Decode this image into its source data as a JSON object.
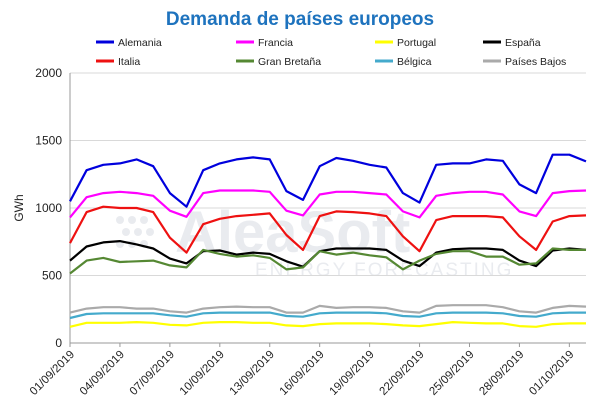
{
  "chart_data": {
    "type": "line",
    "title": "Demanda de países europeos",
    "xlabel": "",
    "ylabel": "GWh",
    "ylim": [
      0,
      2000
    ],
    "yticks": [
      0,
      500,
      1000,
      1500,
      2000
    ],
    "grid": true,
    "legend_position": "top",
    "x": [
      "01/09/2019",
      "02/09/2019",
      "03/09/2019",
      "04/09/2019",
      "05/09/2019",
      "06/09/2019",
      "07/09/2019",
      "08/09/2019",
      "09/09/2019",
      "10/09/2019",
      "11/09/2019",
      "12/09/2019",
      "13/09/2019",
      "14/09/2019",
      "15/09/2019",
      "16/09/2019",
      "17/09/2019",
      "18/09/2019",
      "19/09/2019",
      "20/09/2019",
      "21/09/2019",
      "22/09/2019",
      "23/09/2019",
      "24/09/2019",
      "25/09/2019",
      "26/09/2019",
      "27/09/2019",
      "28/09/2019",
      "29/09/2019",
      "30/09/2019",
      "01/10/2019",
      "02/10/2019"
    ],
    "xtick_labels": [
      "01/09/2019",
      "04/09/2019",
      "07/09/2019",
      "10/09/2019",
      "13/09/2019",
      "16/09/2019",
      "19/09/2019",
      "22/09/2019",
      "25/09/2019",
      "28/09/2019",
      "01/10/2019"
    ],
    "series": [
      {
        "name": "Alemania",
        "color": "#0000dd",
        "values": [
          1050,
          1280,
          1320,
          1330,
          1360,
          1310,
          1110,
          1010,
          1280,
          1330,
          1360,
          1375,
          1360,
          1125,
          1060,
          1310,
          1370,
          1350,
          1320,
          1300,
          1110,
          1040,
          1320,
          1330,
          1330,
          1360,
          1350,
          1175,
          1110,
          1395,
          1395,
          1345
        ]
      },
      {
        "name": "Francia",
        "color": "#ff00ff",
        "values": [
          930,
          1080,
          1110,
          1120,
          1110,
          1090,
          980,
          935,
          1110,
          1130,
          1130,
          1130,
          1120,
          980,
          945,
          1100,
          1120,
          1120,
          1110,
          1100,
          975,
          930,
          1090,
          1110,
          1120,
          1120,
          1100,
          975,
          940,
          1110,
          1125,
          1130
        ]
      },
      {
        "name": "Portugal",
        "color": "#ffff00",
        "values": [
          120,
          150,
          150,
          150,
          155,
          150,
          135,
          130,
          150,
          155,
          155,
          150,
          150,
          130,
          125,
          140,
          145,
          145,
          145,
          140,
          130,
          125,
          140,
          155,
          150,
          145,
          145,
          125,
          120,
          140,
          145,
          145
        ]
      },
      {
        "name": "España",
        "color": "#000000",
        "values": [
          610,
          715,
          745,
          755,
          730,
          700,
          625,
          590,
          680,
          685,
          655,
          670,
          660,
          605,
          565,
          680,
          700,
          700,
          700,
          690,
          610,
          570,
          670,
          695,
          700,
          700,
          690,
          610,
          570,
          685,
          700,
          690
        ]
      },
      {
        "name": "Italia",
        "color": "#ee1111",
        "values": [
          740,
          970,
          1010,
          1000,
          1000,
          970,
          780,
          670,
          880,
          920,
          940,
          950,
          960,
          800,
          690,
          940,
          975,
          970,
          960,
          940,
          790,
          680,
          910,
          940,
          940,
          940,
          930,
          790,
          690,
          900,
          940,
          945
        ]
      },
      {
        "name": "Gran Bretaña",
        "color": "#558833",
        "values": [
          515,
          610,
          630,
          600,
          605,
          610,
          575,
          560,
          690,
          660,
          640,
          650,
          630,
          545,
          560,
          680,
          655,
          670,
          650,
          635,
          545,
          610,
          660,
          680,
          680,
          640,
          640,
          580,
          590,
          700,
          690,
          690
        ]
      },
      {
        "name": "Bélgica",
        "color": "#44aacc",
        "values": [
          185,
          215,
          220,
          220,
          220,
          220,
          205,
          195,
          220,
          225,
          225,
          225,
          225,
          200,
          195,
          220,
          225,
          225,
          225,
          220,
          200,
          195,
          220,
          225,
          225,
          225,
          220,
          200,
          195,
          220,
          225,
          225
        ]
      },
      {
        "name": "Países Bajos",
        "color": "#aaaaaa",
        "values": [
          225,
          255,
          265,
          265,
          255,
          255,
          235,
          225,
          255,
          265,
          270,
          265,
          265,
          225,
          225,
          275,
          260,
          265,
          265,
          260,
          235,
          225,
          275,
          280,
          280,
          280,
          265,
          235,
          225,
          260,
          275,
          270
        ]
      }
    ]
  },
  "watermark": {
    "brand": "AleaSoft",
    "tagline": "ENERGY FORECASTING"
  }
}
